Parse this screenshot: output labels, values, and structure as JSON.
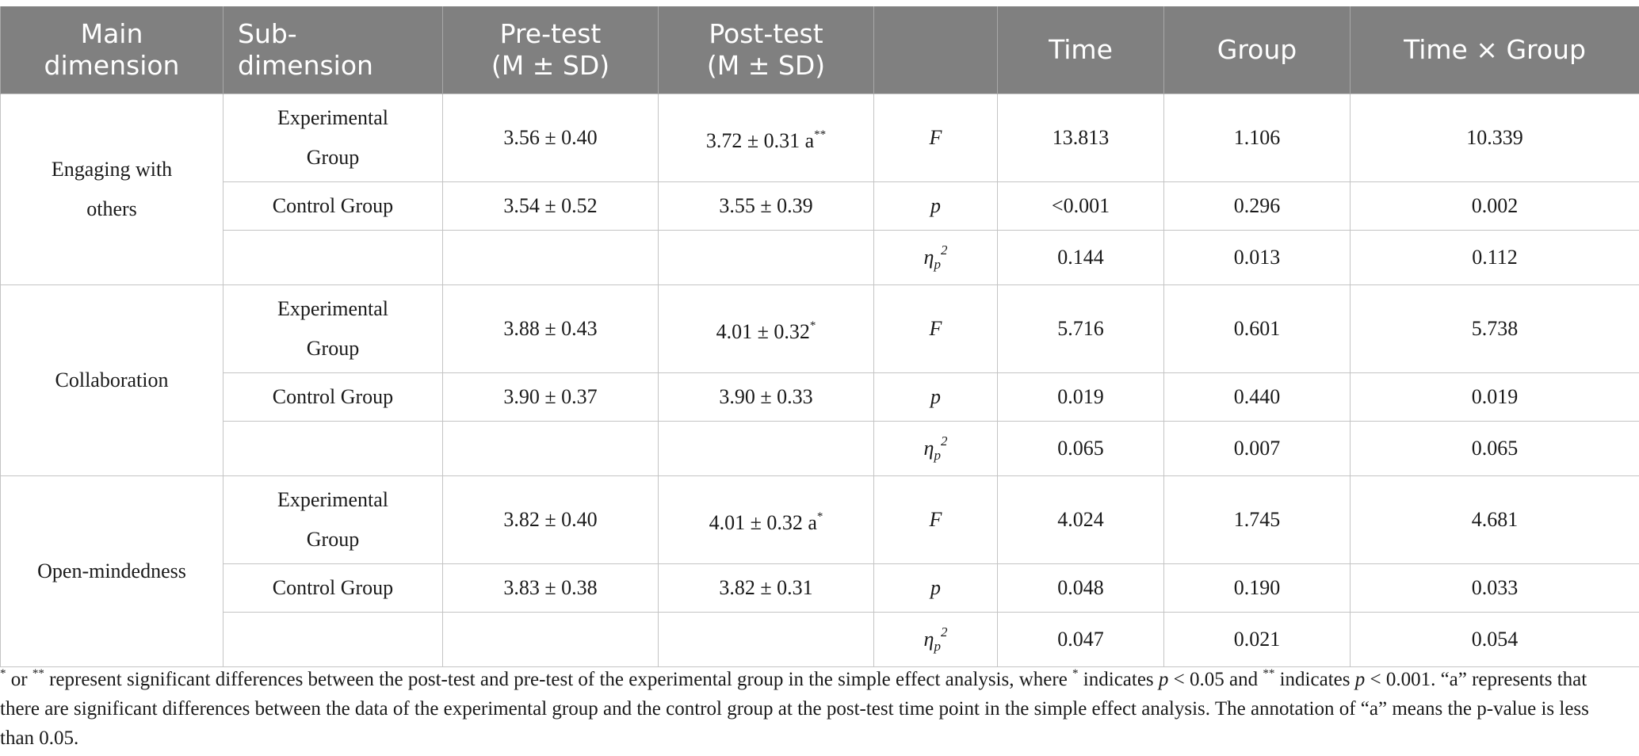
{
  "headers": {
    "main_dimension": "Main dimension",
    "sub_dimension": "Sub-dimension",
    "pre_test_l1": "Pre-test",
    "pre_test_l2": "(M ± SD)",
    "post_test_l1": "Post-test",
    "post_test_l2": "(M ± SD)",
    "stat": "",
    "time": "Time",
    "group": "Group",
    "time_x_group": "Time × Group"
  },
  "stat_labels": {
    "f": "F",
    "p": "p",
    "eta": "η",
    "eta_sub": "p",
    "eta_sup": "2"
  },
  "sections": [
    {
      "main": "Engaging with others",
      "exp_label": "Experimental Group",
      "ctrl_label": "Control Group",
      "exp_pre": "3.56 ± 0.40",
      "exp_post": "3.72 ± 0.31 a",
      "exp_post_mark": "**",
      "ctrl_pre": "3.54 ± 0.52",
      "ctrl_post": "3.55 ± 0.39",
      "f": {
        "time": "13.813",
        "group": "1.106",
        "interaction": "10.339"
      },
      "p": {
        "time": "<0.001",
        "group": "0.296",
        "interaction": "0.002"
      },
      "eta": {
        "time": "0.144",
        "group": "0.013",
        "interaction": "0.112"
      }
    },
    {
      "main": "Collaboration",
      "exp_label": "Experimental Group",
      "ctrl_label": "Control Group",
      "exp_pre": "3.88 ± 0.43",
      "exp_post": "4.01 ± 0.32",
      "exp_post_mark": "*",
      "ctrl_pre": "3.90 ± 0.37",
      "ctrl_post": "3.90 ± 0.33",
      "f": {
        "time": "5.716",
        "group": "0.601",
        "interaction": "5.738"
      },
      "p": {
        "time": "0.019",
        "group": "0.440",
        "interaction": "0.019"
      },
      "eta": {
        "time": "0.065",
        "group": "0.007",
        "interaction": "0.065"
      }
    },
    {
      "main": "Open-mindedness",
      "exp_label": "Experimental Group",
      "ctrl_label": "Control Group",
      "exp_pre": "3.82 ± 0.40",
      "exp_post": "4.01 ± 0.32 a",
      "exp_post_mark": "*",
      "ctrl_pre": "3.83 ± 0.38",
      "ctrl_post": "3.82 ± 0.31",
      "f": {
        "time": "4.024",
        "group": "1.745",
        "interaction": "4.681"
      },
      "p": {
        "time": "0.048",
        "group": "0.190",
        "interaction": "0.033"
      },
      "eta": {
        "time": "0.047",
        "group": "0.021",
        "interaction": "0.054"
      }
    }
  ],
  "footnote": {
    "star1": "*",
    "part1": " or ",
    "star2": "**",
    "part2": " represent significant differences between the post-test and pre-test of the experimental group in the simple effect analysis, where ",
    "star3": "*",
    "part3": " indicates ",
    "p1": "p",
    "part4": " < 0.05 and ",
    "star4": "**",
    "part5": " indicates ",
    "p2": "p",
    "part6": " < 0.001. “a” represents that there are significant differences between the data of the experimental group and the control group at the post-test time point in the simple effect analysis. The annotation of “a” means the p-value is less than 0.05."
  },
  "colors": {
    "header_bg": "#808080",
    "header_text": "#ffffff",
    "grid": "#c4c4c4"
  }
}
